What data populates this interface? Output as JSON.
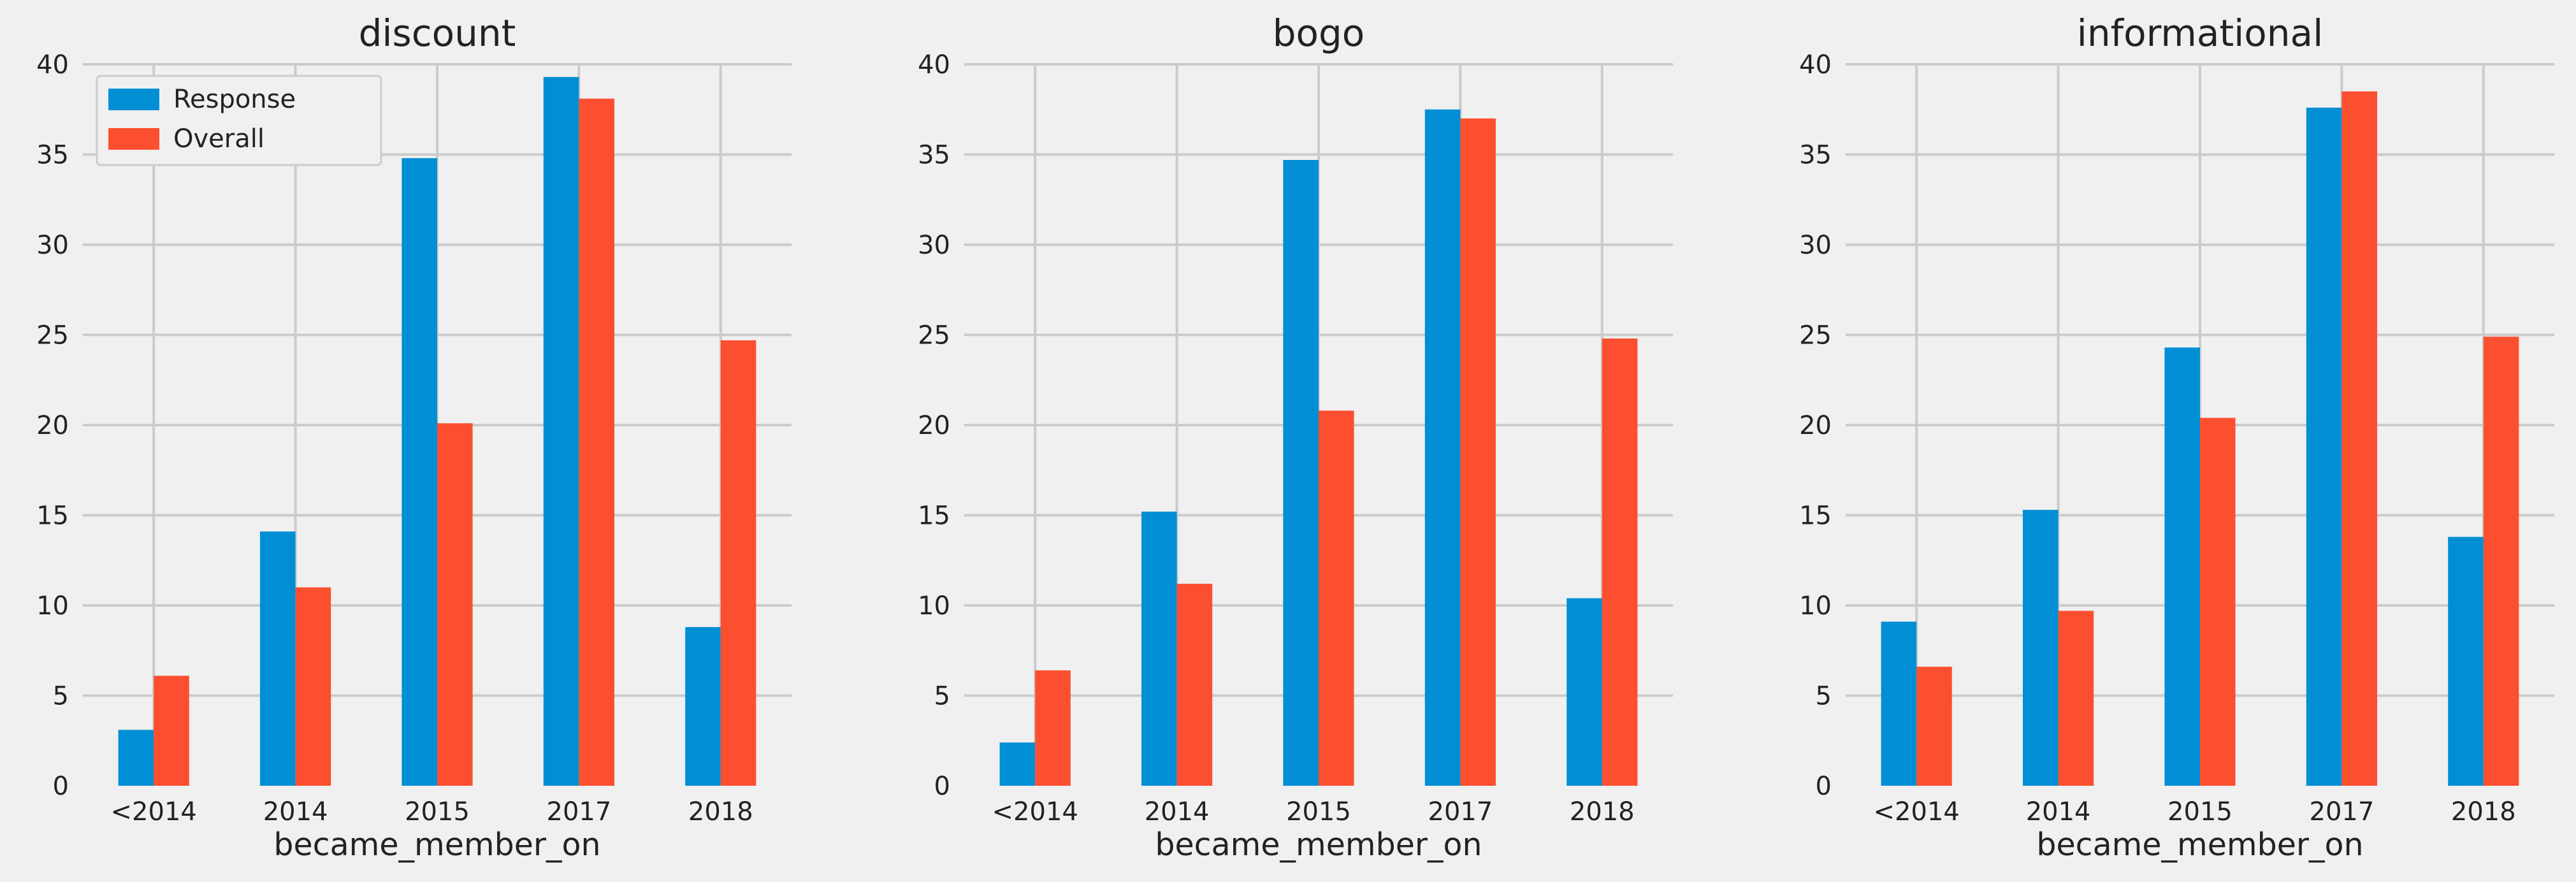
{
  "chart_data": [
    {
      "type": "bar",
      "title": "discount",
      "xlabel": "became_member_on",
      "ylabel": "",
      "categories": [
        "<2014",
        "2014",
        "2015",
        "2017",
        "2018"
      ],
      "ylim": [
        0,
        40
      ],
      "yticks": [
        0,
        5,
        10,
        15,
        20,
        25,
        30,
        35,
        40
      ],
      "grid": true,
      "legend": {
        "position": "top-left"
      },
      "series": [
        {
          "name": "Response",
          "color": "#008fd5",
          "values": [
            3.1,
            14.1,
            34.8,
            39.3,
            8.8
          ]
        },
        {
          "name": "Overall",
          "color": "#fc4f30",
          "values": [
            6.1,
            11.0,
            20.1,
            38.1,
            24.7
          ]
        }
      ]
    },
    {
      "type": "bar",
      "title": "bogo",
      "xlabel": "became_member_on",
      "ylabel": "",
      "categories": [
        "<2014",
        "2014",
        "2015",
        "2017",
        "2018"
      ],
      "ylim": [
        0,
        40
      ],
      "yticks": [
        0,
        5,
        10,
        15,
        20,
        25,
        30,
        35,
        40
      ],
      "grid": true,
      "series": [
        {
          "name": "Response",
          "color": "#008fd5",
          "values": [
            2.4,
            15.2,
            34.7,
            37.5,
            10.4
          ]
        },
        {
          "name": "Overall",
          "color": "#fc4f30",
          "values": [
            6.4,
            11.2,
            20.8,
            37.0,
            24.8
          ]
        }
      ]
    },
    {
      "type": "bar",
      "title": "informational",
      "xlabel": "became_member_on",
      "ylabel": "",
      "categories": [
        "<2014",
        "2014",
        "2015",
        "2017",
        "2018"
      ],
      "ylim": [
        0,
        40
      ],
      "yticks": [
        0,
        5,
        10,
        15,
        20,
        25,
        30,
        35,
        40
      ],
      "grid": true,
      "series": [
        {
          "name": "Response",
          "color": "#008fd5",
          "values": [
            9.1,
            15.3,
            24.3,
            37.6,
            13.8
          ]
        },
        {
          "name": "Overall",
          "color": "#fc4f30",
          "values": [
            6.6,
            9.7,
            20.4,
            38.5,
            24.9
          ]
        }
      ]
    }
  ]
}
